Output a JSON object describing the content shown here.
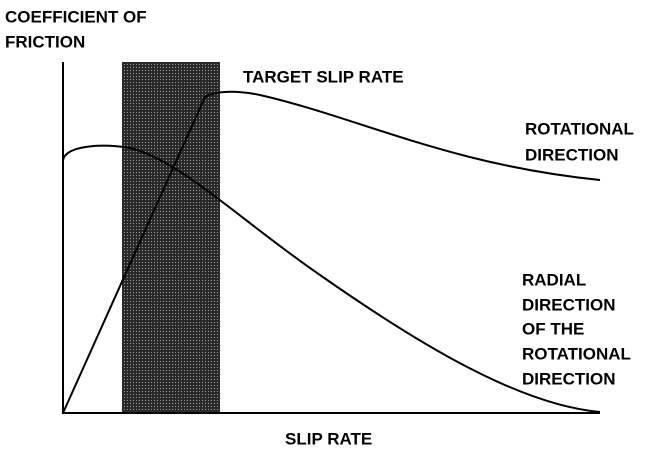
{
  "y_axis_label": [
    "COEFFICIENT OF",
    "FRICTION"
  ],
  "x_axis_label": "SLIP RATE",
  "band_label": "TARGET SLIP RATE",
  "curves": [
    {
      "label": [
        "ROTATIONAL",
        "DIRECTION"
      ]
    },
    {
      "label": [
        "RADIAL",
        "DIRECTION",
        "OF THE",
        "ROTATIONAL",
        "DIRECTION"
      ]
    }
  ]
}
